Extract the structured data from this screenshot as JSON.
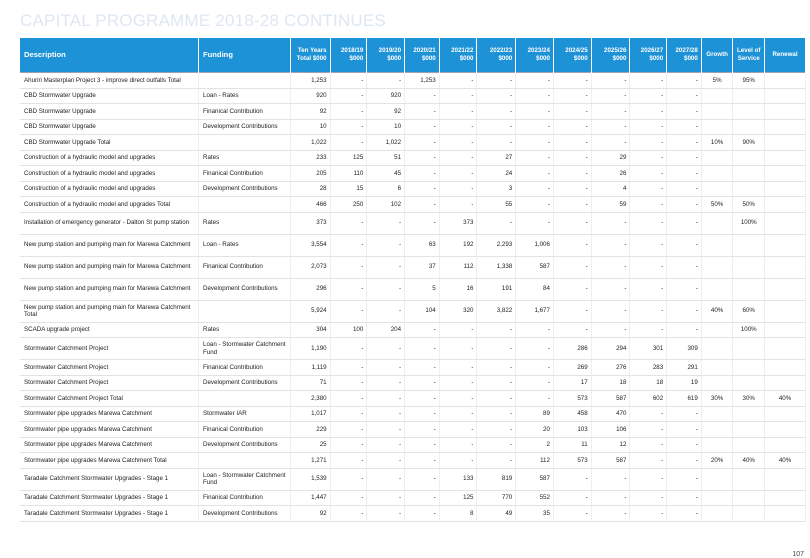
{
  "title": "CAPITAL PROGRAMME 2018-28 CONTINUES",
  "page_number": "107",
  "columns": {
    "description": "Description",
    "funding": "Funding",
    "ten_years_total": "Ten Years Total $000",
    "y2018_19": "2018/19 $000",
    "y2019_20": "2019/20 $000",
    "y2020_21": "2020/21 $000",
    "y2021_22": "2021/22 $000",
    "y2022_23": "2022/23 $000",
    "y2023_24": "2023/24 $000",
    "y2024_25": "2024/25 $000",
    "y2025_26": "2025/26 $000",
    "y2026_27": "2026/27 $000",
    "y2027_28": "2027/28 $000",
    "growth": "Growth",
    "level_of_service": "Level of Service",
    "renewal": "Renewal"
  },
  "rows": [
    {
      "total": true,
      "description": "Ahuriri Masterplan Project 3 - improve direct outfalls Total",
      "funding": "",
      "values": [
        "1,253",
        "-",
        "-",
        "1,253",
        "-",
        "-",
        "-",
        "-",
        "-",
        "-",
        "-"
      ],
      "growth": "5%",
      "los": "95%",
      "renewal": ""
    },
    {
      "total": false,
      "description": "CBD Stormwater Upgrade",
      "funding": "Loan - Rates",
      "values": [
        "920",
        "-",
        "920",
        "-",
        "-",
        "-",
        "-",
        "-",
        "-",
        "-",
        "-"
      ],
      "growth": "",
      "los": "",
      "renewal": ""
    },
    {
      "total": false,
      "description": "CBD Stormwater Upgrade",
      "funding": "Finanical Contribution",
      "values": [
        "92",
        "-",
        "92",
        "-",
        "-",
        "-",
        "-",
        "-",
        "-",
        "-",
        "-"
      ],
      "growth": "",
      "los": "",
      "renewal": ""
    },
    {
      "total": false,
      "description": "CBD Stormwater Upgrade",
      "funding": "Development Contributions",
      "values": [
        "10",
        "-",
        "10",
        "-",
        "-",
        "-",
        "-",
        "-",
        "-",
        "-",
        "-"
      ],
      "growth": "",
      "los": "",
      "renewal": ""
    },
    {
      "total": true,
      "description": "CBD Stormwater Upgrade Total",
      "funding": "",
      "values": [
        "1,022",
        "-",
        "1,022",
        "-",
        "-",
        "-",
        "-",
        "-",
        "-",
        "-",
        "-"
      ],
      "growth": "10%",
      "los": "90%",
      "renewal": ""
    },
    {
      "total": false,
      "description": "Construction of a hydraulic model and upgrades",
      "funding": "Rates",
      "values": [
        "233",
        "125",
        "51",
        "-",
        "-",
        "27",
        "-",
        "-",
        "29",
        "-",
        "-"
      ],
      "growth": "",
      "los": "",
      "renewal": ""
    },
    {
      "total": false,
      "description": "Construction of a hydraulic model and upgrades",
      "funding": "Finanical Contribution",
      "values": [
        "205",
        "110",
        "45",
        "-",
        "-",
        "24",
        "-",
        "-",
        "26",
        "-",
        "-"
      ],
      "growth": "",
      "los": "",
      "renewal": ""
    },
    {
      "total": false,
      "description": "Construction of a hydraulic model and upgrades",
      "funding": "Development Contributions",
      "values": [
        "28",
        "15",
        "6",
        "-",
        "-",
        "3",
        "-",
        "-",
        "4",
        "-",
        "-"
      ],
      "growth": "",
      "los": "",
      "renewal": ""
    },
    {
      "total": true,
      "description": "Construction of a hydraulic model and upgrades Total",
      "funding": "",
      "values": [
        "466",
        "250",
        "102",
        "-",
        "-",
        "55",
        "-",
        "-",
        "59",
        "-",
        "-"
      ],
      "growth": "50%",
      "los": "50%",
      "renewal": ""
    },
    {
      "total": false,
      "description": "Installation of emergency generator - Dalton St pump station",
      "funding": "Rates",
      "values": [
        "373",
        "-",
        "-",
        "-",
        "373",
        "-",
        "-",
        "-",
        "-",
        "-",
        "-"
      ],
      "growth": "",
      "los": "100%",
      "renewal": ""
    },
    {
      "total": false,
      "description": "New pump station and pumping main for Marewa Catchment",
      "funding": "Loan - Rates",
      "values": [
        "3,554",
        "-",
        "-",
        "63",
        "192",
        "2,293",
        "1,006",
        "-",
        "-",
        "-",
        "-"
      ],
      "growth": "",
      "los": "",
      "renewal": ""
    },
    {
      "total": false,
      "description": "New pump station and pumping main for Marewa Catchment",
      "funding": "Finanical Contribution",
      "values": [
        "2,073",
        "-",
        "-",
        "37",
        "112",
        "1,338",
        "587",
        "-",
        "-",
        "-",
        "-"
      ],
      "growth": "",
      "los": "",
      "renewal": ""
    },
    {
      "total": false,
      "description": "New pump station and pumping main for Marewa Catchment",
      "funding": "Development Contributions",
      "values": [
        "296",
        "-",
        "-",
        "5",
        "16",
        "191",
        "84",
        "-",
        "-",
        "-",
        "-"
      ],
      "growth": "",
      "los": "",
      "renewal": ""
    },
    {
      "total": true,
      "description": "New pump station and pumping main for Marewa Catchment Total",
      "funding": "",
      "values": [
        "5,924",
        "-",
        "-",
        "104",
        "320",
        "3,822",
        "1,677",
        "-",
        "-",
        "-",
        "-"
      ],
      "growth": "40%",
      "los": "60%",
      "renewal": ""
    },
    {
      "total": false,
      "description": "SCADA upgrade project",
      "funding": "Rates",
      "values": [
        "304",
        "100",
        "204",
        "-",
        "-",
        "-",
        "-",
        "-",
        "-",
        "-",
        "-"
      ],
      "growth": "",
      "los": "100%",
      "renewal": ""
    },
    {
      "total": false,
      "description": "Stormwater Catchment Project",
      "funding": "Loan - Stormwater Catchment Fund",
      "values": [
        "1,190",
        "-",
        "-",
        "-",
        "-",
        "-",
        "-",
        "286",
        "294",
        "301",
        "309"
      ],
      "growth": "",
      "los": "",
      "renewal": ""
    },
    {
      "total": false,
      "description": "Stormwater Catchment Project",
      "funding": "Finanical Contribution",
      "values": [
        "1,119",
        "-",
        "-",
        "-",
        "-",
        "-",
        "-",
        "269",
        "276",
        "283",
        "291"
      ],
      "growth": "",
      "los": "",
      "renewal": ""
    },
    {
      "total": false,
      "description": "Stormwater Catchment Project",
      "funding": "Development Contributions",
      "values": [
        "71",
        "-",
        "-",
        "-",
        "-",
        "-",
        "-",
        "17",
        "18",
        "18",
        "19"
      ],
      "growth": "",
      "los": "",
      "renewal": ""
    },
    {
      "total": true,
      "description": "Stormwater Catchment Project Total",
      "funding": "",
      "values": [
        "2,380",
        "-",
        "-",
        "-",
        "-",
        "-",
        "-",
        "573",
        "587",
        "602",
        "619"
      ],
      "growth": "30%",
      "los": "30%",
      "renewal": "40%"
    },
    {
      "total": false,
      "description": "Stormwater pipe upgrades Marewa Catchment",
      "funding": "Stormwater IAR",
      "values": [
        "1,017",
        "-",
        "-",
        "-",
        "-",
        "-",
        "89",
        "458",
        "470",
        "-",
        "-"
      ],
      "growth": "",
      "los": "",
      "renewal": ""
    },
    {
      "total": false,
      "description": "Stormwater pipe upgrades Marewa Catchment",
      "funding": "Finanical Contribution",
      "values": [
        "229",
        "-",
        "-",
        "-",
        "-",
        "-",
        "20",
        "103",
        "106",
        "-",
        "-"
      ],
      "growth": "",
      "los": "",
      "renewal": ""
    },
    {
      "total": false,
      "description": "Stormwater pipe upgrades Marewa Catchment",
      "funding": "Development Contributions",
      "values": [
        "25",
        "-",
        "-",
        "-",
        "-",
        "-",
        "2",
        "11",
        "12",
        "-",
        "-"
      ],
      "growth": "",
      "los": "",
      "renewal": ""
    },
    {
      "total": true,
      "description": "Stormwater pipe upgrades Marewa Catchment Total",
      "funding": "",
      "values": [
        "1,271",
        "-",
        "-",
        "-",
        "-",
        "-",
        "112",
        "573",
        "587",
        "-",
        "-"
      ],
      "growth": "20%",
      "los": "40%",
      "renewal": "40%"
    },
    {
      "total": false,
      "description": "Taradale Catchment Stormwater Upgrades - Stage 1",
      "funding": "Loan - Stormwater Catchment Fund",
      "values": [
        "1,539",
        "-",
        "-",
        "-",
        "133",
        "819",
        "587",
        "-",
        "-",
        "-",
        "-"
      ],
      "growth": "",
      "los": "",
      "renewal": ""
    },
    {
      "total": false,
      "description": "Taradale Catchment Stormwater Upgrades - Stage 1",
      "funding": "Finanical Contribution",
      "values": [
        "1,447",
        "-",
        "-",
        "-",
        "125",
        "770",
        "552",
        "-",
        "-",
        "-",
        "-"
      ],
      "growth": "",
      "los": "",
      "renewal": ""
    },
    {
      "total": false,
      "description": "Taradale Catchment Stormwater Upgrades - Stage 1",
      "funding": "Development Contributions",
      "values": [
        "92",
        "-",
        "-",
        "-",
        "8",
        "49",
        "35",
        "-",
        "-",
        "-",
        "-"
      ],
      "growth": "",
      "los": "",
      "renewal": ""
    }
  ]
}
